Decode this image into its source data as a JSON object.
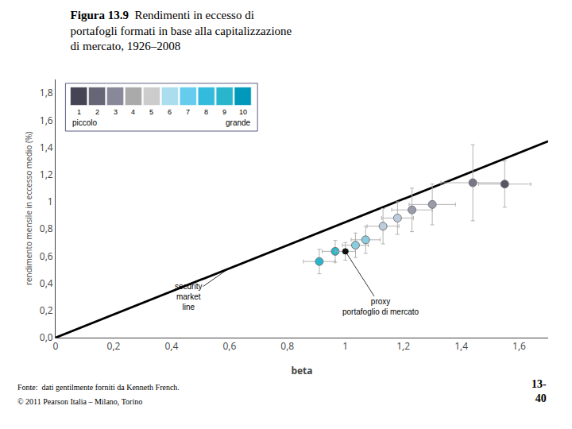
{
  "chart_data": {
    "type": "scatter",
    "title_bold": "Figura 13.9",
    "title": "Rendimenti in eccesso di\nportafogli formati in base alla capitalizzazione\ndi mercato, 1926–2008",
    "xlabel": "beta",
    "ylabel": "rendimento mensile in eccesso medio (%)",
    "xlim": [
      0,
      1.7
    ],
    "ylim": [
      0.0,
      1.9
    ],
    "xticks": [
      0,
      {
        "value": 0.2,
        "label": "0,2"
      },
      {
        "value": 0.4,
        "label": "0,4"
      },
      {
        "value": 0.6,
        "label": "0,6"
      },
      {
        "value": 0.8,
        "label": "0,8"
      },
      1,
      {
        "value": 1.2,
        "label": "1,2"
      },
      {
        "value": 1.4,
        "label": "1,4"
      },
      {
        "value": 1.6,
        "label": "1,6"
      }
    ],
    "yticks": [
      {
        "value": 0.0,
        "label": "0,0"
      },
      {
        "value": 0.2,
        "label": "0,2"
      },
      {
        "value": 0.4,
        "label": "0,4"
      },
      {
        "value": 0.6,
        "label": "0,6"
      },
      {
        "value": 0.8,
        "label": "0,8"
      },
      1,
      {
        "value": 1.2,
        "label": "1,2"
      },
      {
        "value": 1.4,
        "label": "1,4"
      },
      {
        "value": 1.6,
        "label": "1,6"
      },
      {
        "value": 1.8,
        "label": "1,8"
      }
    ],
    "grid": false,
    "series": [
      {
        "type": "line",
        "color": "#000000",
        "x": [
          0,
          1.7
        ],
        "values": [
          0.0,
          1.445
        ]
      },
      {
        "type": "scatter",
        "x": [
          0.91,
          0.965,
          1.035,
          1.07,
          1.13,
          1.18,
          1.23,
          1.3,
          1.44,
          1.55
        ],
        "values": [
          0.56,
          0.635,
          0.68,
          0.72,
          0.82,
          0.88,
          0.94,
          0.98,
          1.14,
          1.13
        ],
        "xerr": [
          0.055,
          0.045,
          0.045,
          0.05,
          0.055,
          0.055,
          0.07,
          0.08,
          0.11,
          0.09
        ],
        "yerr": [
          0.09,
          0.08,
          0.09,
          0.1,
          0.13,
          0.12,
          0.16,
          0.15,
          0.28,
          0.17
        ],
        "colors": [
          "#29b6cc",
          "#29b6cc",
          "#88ccdd",
          "#88ccdd",
          "#bbccdd",
          "#bbccdd",
          "#999aaa",
          "#999aaa",
          "#777788",
          "#555566"
        ]
      },
      {
        "type": "scatter",
        "x": [
          1.0
        ],
        "values": [
          0.635
        ],
        "xerr": [
          0.035
        ],
        "yerr": [
          0.065
        ],
        "color": "#111111"
      }
    ],
    "annotations": [
      {
        "text": "security\nmarket\nline",
        "x": 0.595,
        "y": 0.505
      },
      {
        "text": "proxy\nportafoglio di mercato",
        "x": 1.0,
        "y": 0.635
      }
    ],
    "scale_key": {
      "colors": [
        "#444455",
        "#666677",
        "#888899",
        "#aaaaaa",
        "#cccccc",
        "#aaddee",
        "#66ccee",
        "#33bbdd",
        "#29b6cc",
        "#0099bb"
      ],
      "labels": [
        "1",
        "2",
        "3",
        "4",
        "5",
        "6",
        "7",
        "8",
        "9",
        "10"
      ],
      "low": "piccolo",
      "high": "grande"
    },
    "notes": [
      "Fonte:  dati gentilmente forniti da Kenneth French.",
      "© 2011 Pearson Italia – Milano, Torino"
    ],
    "page_number": "13-\n40"
  }
}
